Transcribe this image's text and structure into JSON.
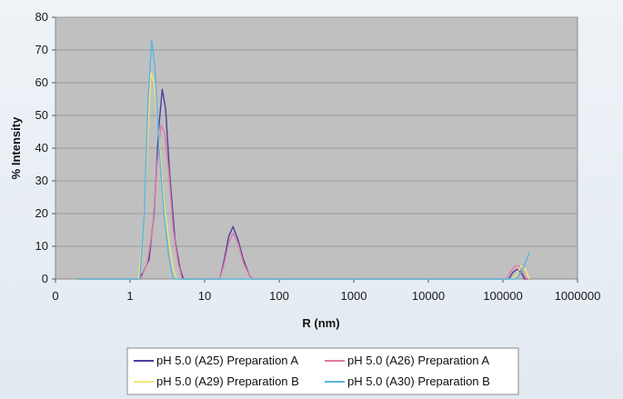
{
  "chart_data": {
    "type": "line",
    "title": "",
    "xlabel": "R (nm)",
    "ylabel": "% Intensity",
    "xscale": "log",
    "xlim": [
      0.1,
      1000000
    ],
    "ylim": [
      0,
      80
    ],
    "x_tick_labels": [
      "0",
      "1",
      "10",
      "100",
      "1000",
      "10000",
      "100000",
      "1000000"
    ],
    "x_tick_values": [
      0.1,
      1,
      10,
      100,
      1000,
      10000,
      100000,
      1000000
    ],
    "y_ticks": [
      0,
      10,
      20,
      30,
      40,
      50,
      60,
      70,
      80
    ],
    "grid": true,
    "plot_background": "#c0c0c0",
    "legend_position": "bottom",
    "series": [
      {
        "name": "pH 5.0 (A25) Preparation A",
        "color": "#4b3f9c",
        "points": [
          [
            0.2,
            0
          ],
          [
            1.3,
            0
          ],
          [
            1.5,
            2
          ],
          [
            1.8,
            6
          ],
          [
            2.1,
            20
          ],
          [
            2.4,
            45
          ],
          [
            2.7,
            58
          ],
          [
            3.0,
            52
          ],
          [
            3.4,
            32
          ],
          [
            4.0,
            12
          ],
          [
            4.7,
            3
          ],
          [
            5.2,
            0
          ],
          [
            16,
            0
          ],
          [
            18,
            5
          ],
          [
            21,
            13
          ],
          [
            24,
            16
          ],
          [
            28,
            12
          ],
          [
            33,
            6
          ],
          [
            40,
            1
          ],
          [
            44,
            0
          ],
          [
            120000,
            0
          ],
          [
            135000,
            2
          ],
          [
            155000,
            3
          ],
          [
            175000,
            2
          ],
          [
            195000,
            0
          ],
          [
            220000,
            0
          ]
        ]
      },
      {
        "name": "pH 5.0 (A26) Preparation A",
        "color": "#e07aa6",
        "points": [
          [
            0.2,
            0
          ],
          [
            1.4,
            0
          ],
          [
            1.7,
            5
          ],
          [
            2.0,
            15
          ],
          [
            2.3,
            35
          ],
          [
            2.6,
            47
          ],
          [
            2.9,
            45
          ],
          [
            3.3,
            33
          ],
          [
            3.8,
            15
          ],
          [
            4.4,
            5
          ],
          [
            5.0,
            0
          ],
          [
            16,
            0
          ],
          [
            18,
            4
          ],
          [
            21,
            11
          ],
          [
            24,
            14
          ],
          [
            28,
            11
          ],
          [
            33,
            5
          ],
          [
            40,
            1
          ],
          [
            45,
            0
          ],
          [
            110000,
            0
          ],
          [
            125000,
            2
          ],
          [
            145000,
            4
          ],
          [
            165000,
            4
          ],
          [
            185000,
            2
          ],
          [
            205000,
            0
          ],
          [
            225000,
            0
          ]
        ]
      },
      {
        "name": "pH 5.0 (A29) Preparation B",
        "color": "#f2e67a",
        "points": [
          [
            0.2,
            0
          ],
          [
            1.3,
            0
          ],
          [
            1.5,
            15
          ],
          [
            1.7,
            40
          ],
          [
            1.9,
            63
          ],
          [
            2.1,
            60
          ],
          [
            2.4,
            45
          ],
          [
            2.8,
            25
          ],
          [
            3.3,
            12
          ],
          [
            3.8,
            3
          ],
          [
            4.2,
            0
          ],
          [
            130000,
            0
          ],
          [
            150000,
            1
          ],
          [
            175000,
            4
          ],
          [
            200000,
            3
          ],
          [
            225000,
            0
          ]
        ]
      },
      {
        "name": "pH 5.0 (A30) Preparation B",
        "color": "#5ab4e0",
        "points": [
          [
            0.2,
            0
          ],
          [
            1.35,
            0
          ],
          [
            1.55,
            20
          ],
          [
            1.75,
            55
          ],
          [
            1.95,
            73
          ],
          [
            2.15,
            65
          ],
          [
            2.45,
            40
          ],
          [
            2.85,
            20
          ],
          [
            3.3,
            7
          ],
          [
            3.7,
            1
          ],
          [
            4.0,
            0
          ],
          [
            150000,
            0
          ],
          [
            175000,
            2
          ],
          [
            200000,
            5
          ],
          [
            225000,
            8
          ]
        ]
      }
    ]
  }
}
